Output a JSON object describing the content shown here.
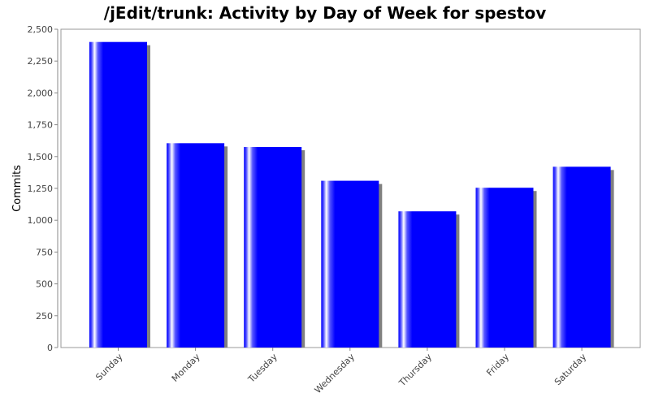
{
  "chart_data": {
    "type": "bar",
    "title": "/jEdit/trunk: Activity by Day of Week for spestov",
    "xlabel": "",
    "ylabel": "Commits",
    "categories": [
      "Sunday",
      "Monday",
      "Tuesday",
      "Wednesday",
      "Thursday",
      "Friday",
      "Saturday"
    ],
    "series": [
      {
        "values": [
          2400,
          1605,
          1575,
          1310,
          1070,
          1255,
          1420
        ],
        "color": "#0000ff"
      }
    ],
    "ylim": [
      0,
      2500
    ],
    "yticks": [
      "0",
      "250",
      "500",
      "750",
      "1,000",
      "1,250",
      "1,500",
      "1,750",
      "2,000",
      "2,250",
      "2,500"
    ],
    "ytick_values": [
      0,
      250,
      500,
      750,
      1000,
      1250,
      1500,
      1750,
      2000,
      2250,
      2500
    ],
    "grid": false,
    "legend": "none",
    "colors": {
      "bar": "#0000ff",
      "bar_highlight": "#ffffff",
      "shadow": "#808080",
      "plot_border": "#999999"
    }
  }
}
